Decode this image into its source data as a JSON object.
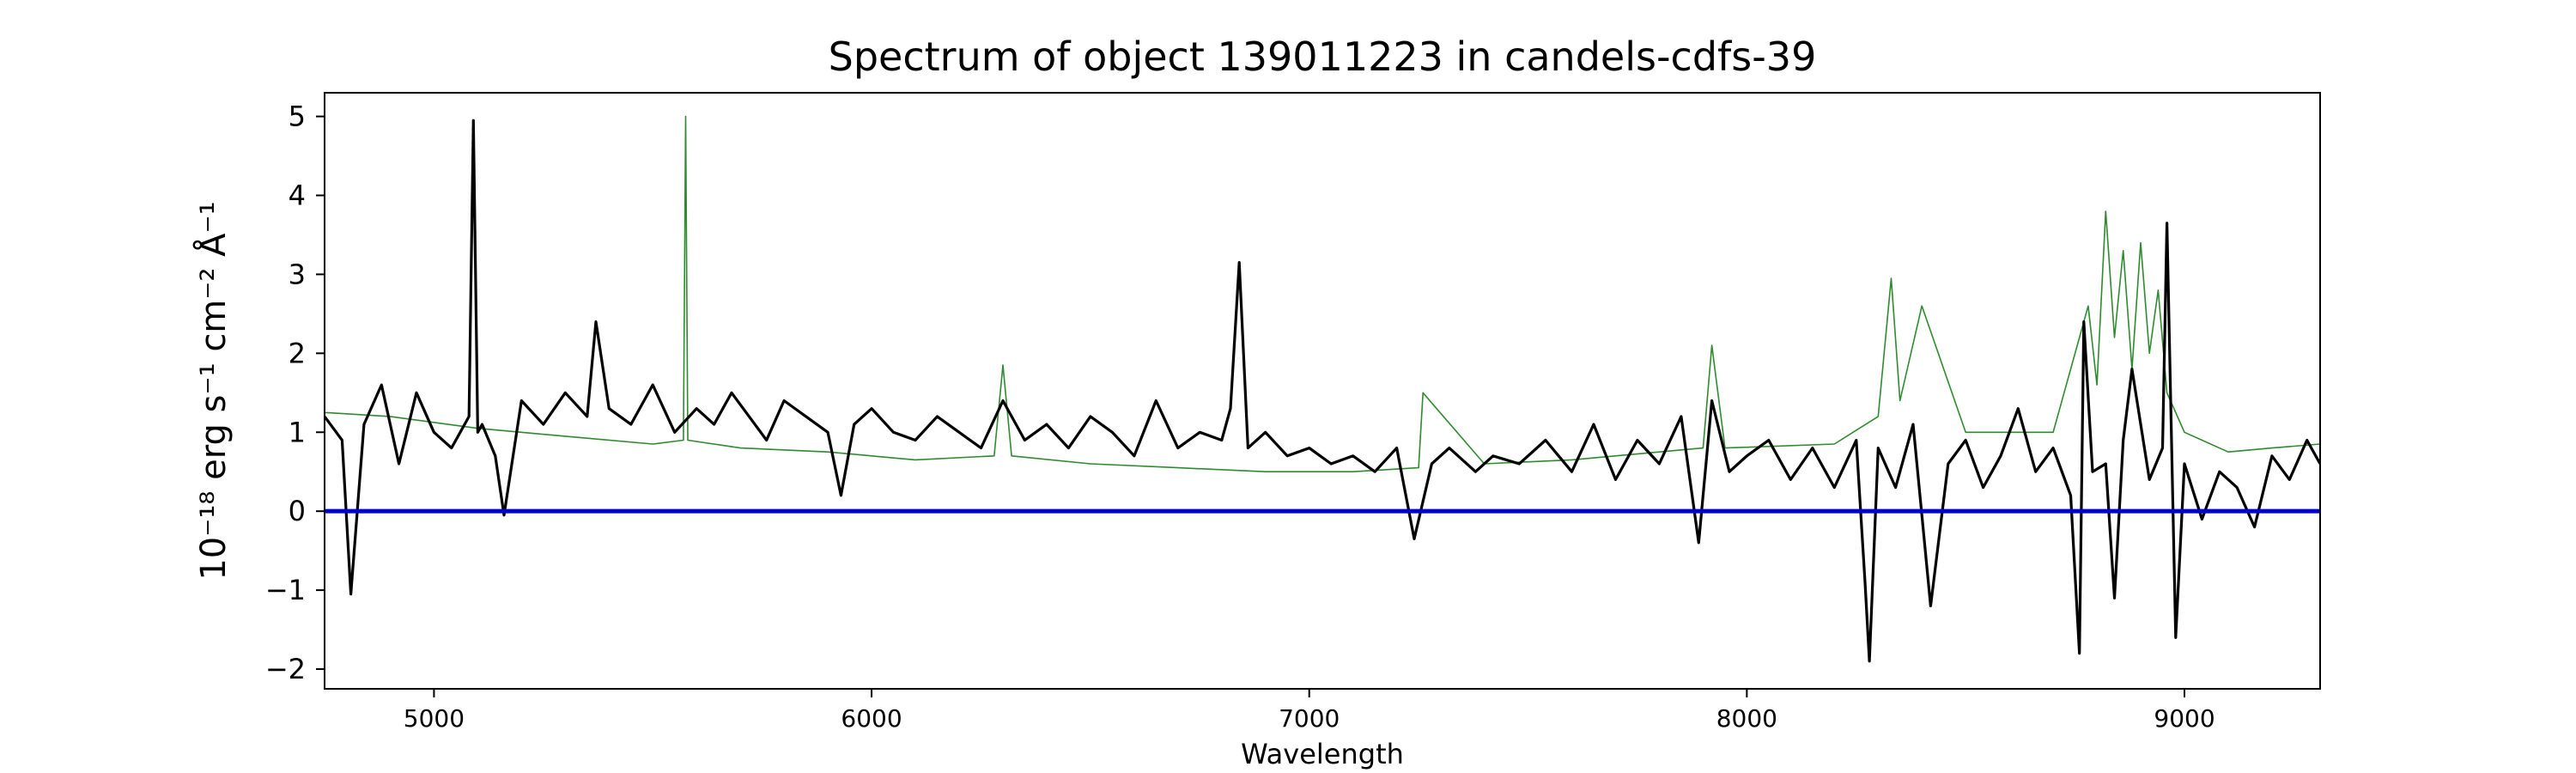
{
  "chart_data": {
    "type": "line",
    "title": "Spectrum of object 139011223 in candels-cdfs-39",
    "xlabel": "Wavelength",
    "ylabel": "10⁻¹⁸ erg s⁻¹ cm⁻² Å⁻¹",
    "xlim": [
      4750,
      9310
    ],
    "ylim": [
      -2.25,
      5.3
    ],
    "xticks": [
      5000,
      6000,
      7000,
      8000,
      9000
    ],
    "yticks": [
      -2,
      -1,
      0,
      1,
      2,
      3,
      4,
      5
    ],
    "grid": false,
    "colors": {
      "flux": "#000000",
      "model": "#2e8b2e",
      "zero": "#0000cc"
    },
    "series": [
      {
        "id": "flux",
        "x": [
          4750,
          4790,
          4810,
          4840,
          4880,
          4920,
          4960,
          5000,
          5040,
          5080,
          5090,
          5100,
          5110,
          5140,
          5160,
          5200,
          5250,
          5300,
          5350,
          5370,
          5400,
          5450,
          5500,
          5550,
          5600,
          5640,
          5680,
          5720,
          5760,
          5800,
          5850,
          5900,
          5930,
          5960,
          6000,
          6050,
          6100,
          6150,
          6200,
          6250,
          6300,
          6350,
          6400,
          6450,
          6500,
          6550,
          6600,
          6650,
          6700,
          6750,
          6800,
          6820,
          6840,
          6860,
          6900,
          6950,
          7000,
          7050,
          7100,
          7150,
          7200,
          7240,
          7280,
          7320,
          7380,
          7420,
          7480,
          7540,
          7600,
          7650,
          7700,
          7750,
          7800,
          7850,
          7890,
          7920,
          7960,
          8000,
          8050,
          8100,
          8150,
          8200,
          8250,
          8270,
          8280,
          8300,
          8340,
          8380,
          8420,
          8460,
          8500,
          8540,
          8580,
          8620,
          8660,
          8700,
          8740,
          8760,
          8770,
          8790,
          8820,
          8840,
          8860,
          8880,
          8920,
          8950,
          8960,
          8980,
          9000,
          9040,
          9080,
          9120,
          9160,
          9200,
          9240,
          9280,
          9310
        ],
        "y": [
          1.2,
          0.9,
          -1.05,
          1.1,
          1.6,
          0.6,
          1.5,
          1.0,
          0.8,
          1.2,
          4.95,
          1.0,
          1.1,
          0.7,
          -0.05,
          1.4,
          1.1,
          1.5,
          1.2,
          2.4,
          1.3,
          1.1,
          1.6,
          1.0,
          1.3,
          1.1,
          1.5,
          1.2,
          0.9,
          1.4,
          1.2,
          1.0,
          0.2,
          1.1,
          1.3,
          1.0,
          0.9,
          1.2,
          1.0,
          0.8,
          1.4,
          0.9,
          1.1,
          0.8,
          1.2,
          1.0,
          0.7,
          1.4,
          0.8,
          1.0,
          0.9,
          1.3,
          3.15,
          0.8,
          1.0,
          0.7,
          0.8,
          0.6,
          0.7,
          0.5,
          0.8,
          -0.35,
          0.6,
          0.8,
          0.5,
          0.7,
          0.6,
          0.9,
          0.5,
          1.1,
          0.4,
          0.9,
          0.6,
          1.2,
          -0.4,
          1.4,
          0.5,
          0.7,
          0.9,
          0.4,
          0.8,
          0.3,
          0.9,
          -0.9,
          -1.9,
          0.8,
          0.3,
          1.1,
          -1.2,
          0.6,
          0.9,
          0.3,
          0.7,
          1.3,
          0.5,
          0.8,
          0.2,
          -1.8,
          2.4,
          0.5,
          0.6,
          -1.1,
          0.9,
          1.8,
          0.4,
          0.8,
          3.65,
          -1.6,
          0.6,
          -0.1,
          0.5,
          0.3,
          -0.2,
          0.7,
          0.4,
          0.9,
          0.6
        ]
      },
      {
        "id": "model",
        "x": [
          4750,
          4900,
          5100,
          5300,
          5500,
          5570,
          5575,
          5580,
          5700,
          5900,
          6100,
          6280,
          6300,
          6320,
          6500,
          6700,
          6900,
          7100,
          7250,
          7260,
          7400,
          7600,
          7800,
          7900,
          7920,
          7950,
          8200,
          8300,
          8330,
          8350,
          8400,
          8450,
          8500,
          8700,
          8780,
          8800,
          8820,
          8840,
          8860,
          8880,
          8900,
          8920,
          8940,
          8960,
          9000,
          9100,
          9200,
          9310
        ],
        "y": [
          1.25,
          1.2,
          1.05,
          0.95,
          0.85,
          0.9,
          5.0,
          0.9,
          0.8,
          0.75,
          0.65,
          0.7,
          1.85,
          0.7,
          0.6,
          0.55,
          0.5,
          0.5,
          0.55,
          1.5,
          0.6,
          0.65,
          0.75,
          0.8,
          2.1,
          0.8,
          0.85,
          1.2,
          2.95,
          1.4,
          2.6,
          1.8,
          1.0,
          1.0,
          2.6,
          1.6,
          3.8,
          2.2,
          3.3,
          1.8,
          3.4,
          2.0,
          2.8,
          1.5,
          1.0,
          0.75,
          0.8,
          0.85
        ]
      }
    ],
    "hline": 0
  }
}
